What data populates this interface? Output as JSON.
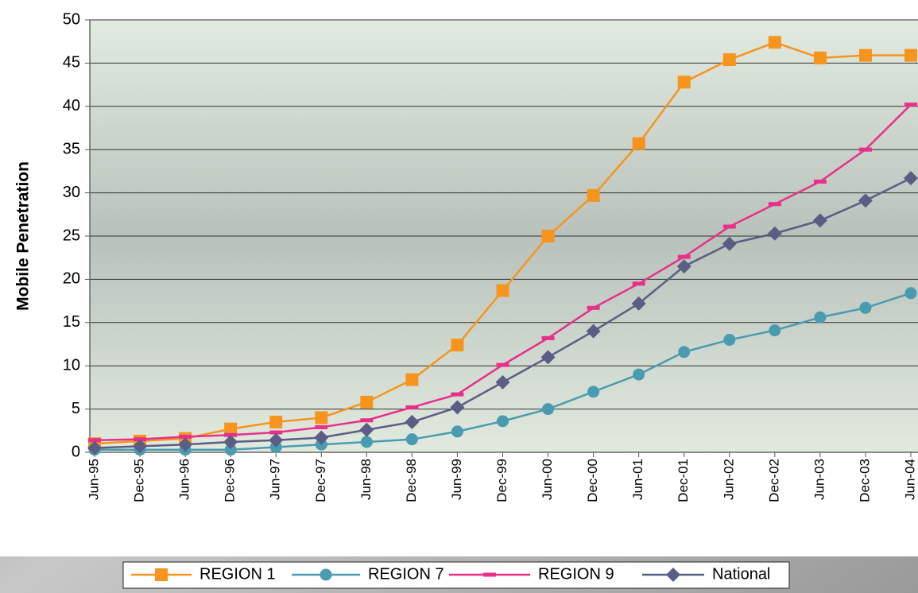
{
  "chart_data": {
    "type": "line",
    "ylabel": "Mobile Penetration",
    "categories": [
      "Jun-95",
      "Dec-95",
      "Jun-96",
      "Dec-96",
      "Jun-97",
      "Dec-97",
      "Jun-98",
      "Dec-98",
      "Jun-99",
      "Dec-99",
      "Jun-00",
      "Dec-00",
      "Jun-01",
      "Dec-01",
      "Jun-02",
      "Dec-02",
      "Jun-03",
      "Dec-03",
      "Jun-04"
    ],
    "series": [
      {
        "name": "REGION 1",
        "color": "#f7941d",
        "marker": "square",
        "values": [
          1.0,
          1.3,
          1.6,
          2.7,
          3.5,
          4.0,
          5.8,
          8.4,
          12.4,
          18.7,
          25.0,
          29.7,
          35.7,
          42.8,
          45.4,
          47.4,
          45.6,
          45.9,
          45.9
        ]
      },
      {
        "name": "REGION 7",
        "color": "#4a9bb0",
        "marker": "circle",
        "values": [
          0.3,
          0.3,
          0.3,
          0.3,
          0.6,
          0.9,
          1.2,
          1.5,
          2.4,
          3.6,
          5.0,
          7.0,
          9.0,
          11.6,
          13.0,
          14.1,
          15.6,
          16.7,
          18.4
        ]
      },
      {
        "name": "REGION 9",
        "color": "#e8308a",
        "marker": "dash",
        "values": [
          1.4,
          1.5,
          1.8,
          2.0,
          2.3,
          2.9,
          3.7,
          5.2,
          6.7,
          10.1,
          13.2,
          16.7,
          19.5,
          22.6,
          26.1,
          28.7,
          31.3,
          35.0,
          40.2
        ]
      },
      {
        "name": "National",
        "color": "#5b5d84",
        "marker": "diamond",
        "values": [
          0.5,
          0.7,
          0.9,
          1.2,
          1.4,
          1.7,
          2.6,
          3.5,
          5.2,
          8.1,
          11.0,
          14.0,
          17.2,
          21.5,
          24.1,
          25.3,
          26.8,
          29.1,
          31.7
        ]
      }
    ],
    "ylim": [
      0,
      50
    ],
    "yticks": [
      0,
      5,
      10,
      15,
      20,
      25,
      30,
      35,
      40,
      45,
      50
    ],
    "grid": true,
    "legend": "bottom"
  }
}
